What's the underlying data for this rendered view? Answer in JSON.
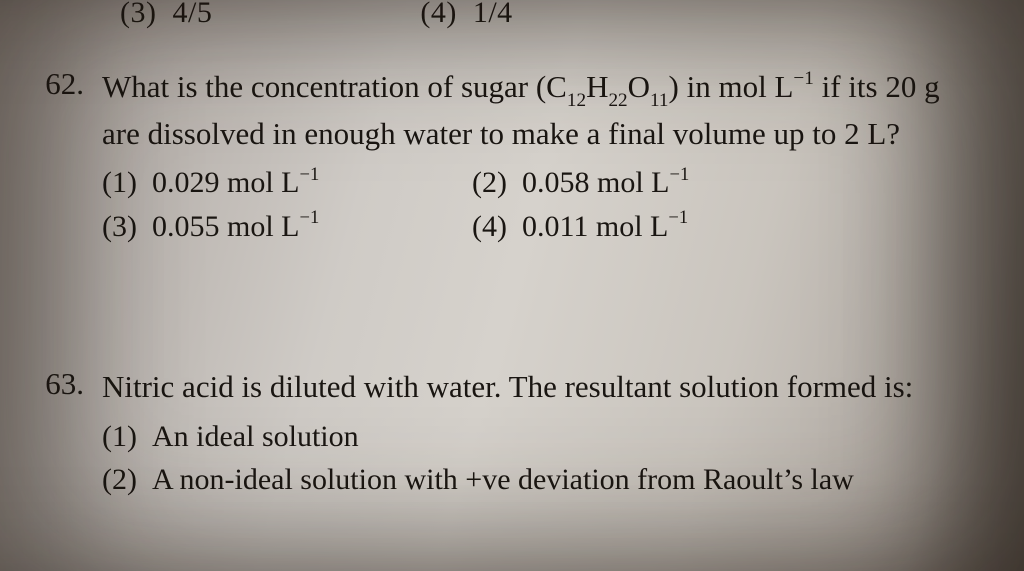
{
  "fragment_top": {
    "opt3_label": "(3)",
    "opt3_value": "4/5",
    "opt4_label": "(4)",
    "opt4_value": "1/4"
  },
  "q62": {
    "number": "62.",
    "stem_1": "What is the concentration of sugar (C",
    "sub1": "12",
    "stem_2": "H",
    "sub2": "22",
    "stem_3": "O",
    "sub3": "11",
    "stem_4": ") in mol L",
    "sup1": "−1",
    "stem_5": " if its 20 g are dissolved in enough water to make a final volume up to 2 L?",
    "opt1_label": "(1)",
    "opt1_val": "0.029 mol L",
    "opt2_label": "(2)",
    "opt2_val": "0.058 mol L",
    "opt3_label": "(3)",
    "opt3_val": "0.055 mol L",
    "opt4_label": "(4)",
    "opt4_val": "0.011 mol L",
    "unit_sup": "−1"
  },
  "q63": {
    "number": "63.",
    "stem": "Nitric acid is diluted with water. The resultant solution formed is:",
    "opt1_label": "(1)",
    "opt1_text": "An ideal solution",
    "opt2_label": "(2)",
    "opt2_text": "A non-ideal solution with +ve deviation from Raoult’s law"
  }
}
